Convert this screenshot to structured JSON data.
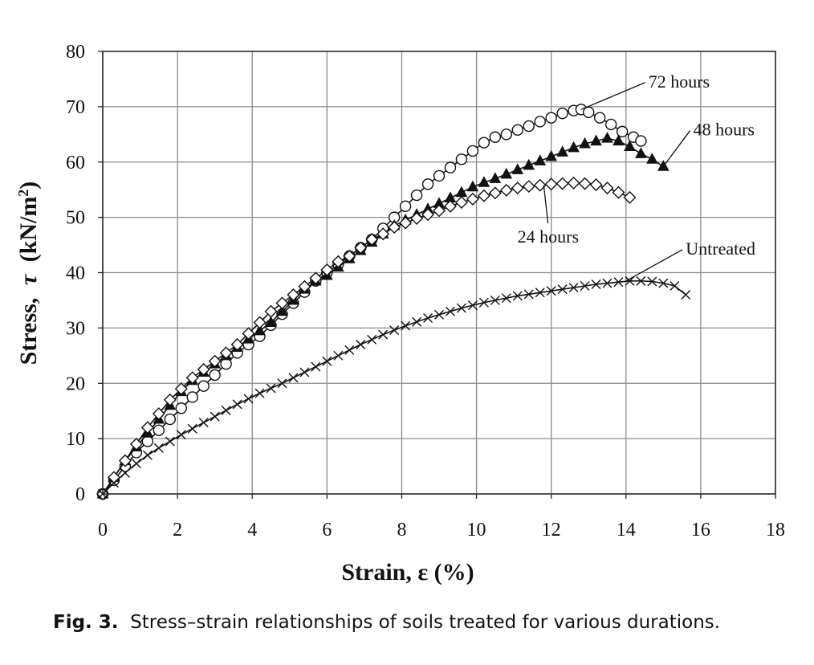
{
  "caption": {
    "label": "Fig. 3.",
    "text": "Stress–strain relationships of soils treated for various durations."
  },
  "chart_data": {
    "type": "line",
    "title": "",
    "xlabel": "Strain, ε (%)",
    "ylabel_prefix": "Stress,",
    "ylabel_symbol": "τ",
    "ylabel_unit": "(kN/m",
    "ylabel_sup": "2",
    "ylabel_close": ")",
    "xlim": [
      0,
      18
    ],
    "ylim": [
      0,
      80
    ],
    "xticks": [
      0,
      2,
      4,
      6,
      8,
      10,
      12,
      14,
      16,
      18
    ],
    "yticks": [
      0,
      10,
      20,
      30,
      40,
      50,
      60,
      70,
      80
    ],
    "grid": true,
    "legend": "none",
    "series": [
      {
        "name": "72 hours",
        "marker": "circle",
        "x": [
          0,
          0.3,
          0.6,
          0.9,
          1.2,
          1.5,
          1.8,
          2.1,
          2.4,
          2.7,
          3.0,
          3.3,
          3.6,
          3.9,
          4.2,
          4.5,
          4.8,
          5.1,
          5.4,
          5.7,
          6.0,
          6.3,
          6.6,
          6.9,
          7.2,
          7.5,
          7.8,
          8.1,
          8.4,
          8.7,
          9.0,
          9.3,
          9.6,
          9.9,
          10.2,
          10.5,
          10.8,
          11.1,
          11.4,
          11.7,
          12.0,
          12.3,
          12.6,
          12.8,
          13.0,
          13.3,
          13.6,
          13.9,
          14.2,
          14.4
        ],
        "y": [
          0,
          2.5,
          5,
          7.5,
          9.5,
          11.5,
          13.5,
          15.5,
          17.5,
          19.5,
          21.5,
          23.5,
          25.5,
          27,
          28.5,
          30.5,
          32.5,
          34.5,
          36.5,
          38.5,
          40,
          41.5,
          43,
          44.5,
          46,
          48,
          50,
          52,
          54,
          56,
          57.5,
          59,
          60.5,
          62,
          63.5,
          64.5,
          65,
          65.8,
          66.5,
          67.3,
          68,
          68.8,
          69.3,
          69.5,
          69,
          68,
          66.8,
          65.5,
          64.5,
          63.8
        ]
      },
      {
        "name": "48 hours",
        "marker": "triangle",
        "x": [
          0,
          0.3,
          0.6,
          0.9,
          1.2,
          1.5,
          1.8,
          2.1,
          2.4,
          2.7,
          3.0,
          3.3,
          3.6,
          3.9,
          4.2,
          4.5,
          4.8,
          5.1,
          5.4,
          5.7,
          6.0,
          6.3,
          6.6,
          6.9,
          7.2,
          7.5,
          7.8,
          8.1,
          8.4,
          8.7,
          9.0,
          9.3,
          9.6,
          9.9,
          10.2,
          10.5,
          10.8,
          11.1,
          11.4,
          11.7,
          12.0,
          12.3,
          12.6,
          12.9,
          13.2,
          13.5,
          13.8,
          14.1,
          14.4,
          14.7,
          15.0
        ],
        "y": [
          0,
          3,
          6,
          8.5,
          11,
          13.5,
          16,
          18.5,
          20.5,
          22,
          23.5,
          25,
          26.5,
          28,
          29.5,
          31,
          33,
          35,
          37,
          38.5,
          39.5,
          41,
          42.5,
          44,
          45.5,
          47,
          48.5,
          49.5,
          50.5,
          51.5,
          52.5,
          53.5,
          54.5,
          55.5,
          56.3,
          57,
          57.8,
          58.6,
          59.4,
          60.2,
          61,
          61.8,
          62.6,
          63.3,
          63.8,
          64.3,
          63.8,
          62.8,
          61.5,
          60.5,
          59.2
        ]
      },
      {
        "name": "24 hours",
        "marker": "diamond",
        "x": [
          0,
          0.3,
          0.6,
          0.9,
          1.2,
          1.5,
          1.8,
          2.1,
          2.4,
          2.7,
          3.0,
          3.3,
          3.6,
          3.9,
          4.2,
          4.5,
          4.8,
          5.1,
          5.4,
          5.7,
          6.0,
          6.3,
          6.6,
          6.9,
          7.2,
          7.5,
          7.8,
          8.1,
          8.4,
          8.7,
          9.0,
          9.3,
          9.6,
          9.9,
          10.2,
          10.5,
          10.8,
          11.1,
          11.4,
          11.7,
          12.0,
          12.3,
          12.6,
          12.9,
          13.2,
          13.5,
          13.8,
          14.1
        ],
        "y": [
          0,
          3,
          6,
          9,
          12,
          14.5,
          17,
          19,
          21,
          22.5,
          24,
          25.5,
          27,
          29,
          31,
          33,
          34.5,
          36,
          37.5,
          39,
          40.5,
          42,
          43,
          44.5,
          46,
          47,
          48.2,
          49,
          49.8,
          50.5,
          51.2,
          52,
          52.7,
          53.3,
          53.9,
          54.4,
          54.9,
          55.3,
          55.6,
          55.8,
          56,
          56.1,
          56.2,
          56.1,
          55.9,
          55.3,
          54.5,
          53.6
        ]
      },
      {
        "name": "Untreated",
        "marker": "x",
        "x": [
          0,
          0.3,
          0.6,
          0.9,
          1.2,
          1.5,
          1.8,
          2.1,
          2.4,
          2.7,
          3.0,
          3.3,
          3.6,
          3.9,
          4.2,
          4.5,
          4.8,
          5.1,
          5.4,
          5.7,
          6.0,
          6.3,
          6.6,
          6.9,
          7.2,
          7.5,
          7.8,
          8.1,
          8.4,
          8.7,
          9.0,
          9.3,
          9.6,
          9.9,
          10.2,
          10.5,
          10.8,
          11.1,
          11.4,
          11.7,
          12.0,
          12.3,
          12.6,
          12.9,
          13.2,
          13.5,
          13.8,
          14.1,
          14.4,
          14.7,
          15.0,
          15.3,
          15.6
        ],
        "y": [
          0,
          2,
          3.8,
          5.5,
          7,
          8.3,
          9.5,
          10.7,
          11.8,
          12.9,
          14,
          15.1,
          16.2,
          17.2,
          18.2,
          19.1,
          20,
          21,
          22,
          23,
          24,
          25,
          26,
          27,
          27.9,
          28.8,
          29.6,
          30.4,
          31.1,
          31.8,
          32.4,
          33,
          33.6,
          34.1,
          34.6,
          35,
          35.4,
          35.8,
          36.1,
          36.4,
          36.7,
          37,
          37.3,
          37.6,
          37.9,
          38.1,
          38.3,
          38.5,
          38.5,
          38.4,
          38.1,
          37.6,
          36
        ]
      }
    ],
    "annotations": [
      {
        "label": "72 hours",
        "text_x": 14.6,
        "text_y": 73.5,
        "point_x": 12.8,
        "point_y": 69.5
      },
      {
        "label": "48 hours",
        "text_x": 15.8,
        "text_y": 64.8,
        "point_x": 15.0,
        "point_y": 59.2
      },
      {
        "label": "24 hours",
        "text_x": 12.0,
        "text_y": 46.3,
        "point_x": 11.8,
        "point_y": 55.8
      },
      {
        "label": "Untreated",
        "text_x": 15.6,
        "text_y": 43.3,
        "point_x": 14.0,
        "point_y": 38.5
      }
    ]
  }
}
